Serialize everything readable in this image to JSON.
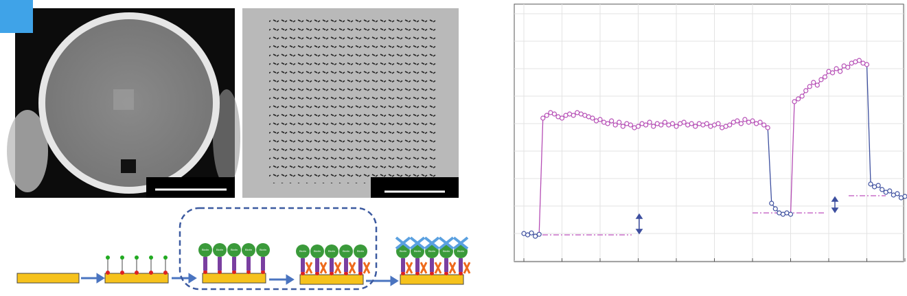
{
  "schematic": {
    "label": "Biotin"
  },
  "chart_data": {
    "type": "line",
    "x": [
      0,
      0.1,
      0.2,
      0.3,
      0.4,
      0.5,
      0.6,
      0.7,
      0.8,
      0.9,
      1,
      1.1,
      1.2,
      1.3,
      1.4,
      1.5,
      1.6,
      1.7,
      1.8,
      1.9,
      2,
      2.1,
      2.2,
      2.3,
      2.4,
      2.5,
      2.6,
      2.7,
      2.8,
      2.9,
      3,
      3.1,
      3.2,
      3.3,
      3.4,
      3.5,
      3.6,
      3.7,
      3.8,
      3.9,
      4,
      4.1,
      4.2,
      4.3,
      4.4,
      4.5,
      4.6,
      4.7,
      4.8,
      4.9,
      5,
      5.1,
      5.2,
      5.3,
      5.4,
      5.5,
      5.6,
      5.7,
      5.8,
      5.9,
      6,
      6.1,
      6.2,
      6.3,
      6.4,
      6.5,
      6.6,
      6.7,
      6.8,
      6.9,
      7,
      7.1,
      7.2,
      7.3,
      7.4,
      7.5,
      7.6,
      7.7,
      7.8,
      7.9,
      8,
      8.1,
      8.2,
      8.3,
      8.4,
      8.5,
      8.6,
      8.7,
      8.8,
      8.9,
      9,
      9.1,
      9.2,
      9.3,
      9.4,
      9.5,
      9.6,
      9.7,
      9.8,
      9.9,
      10
    ],
    "series": [
      {
        "color": "#3d4f9f",
        "values": [
          1.0,
          0.95,
          1.02,
          0.9,
          0.97,
          null,
          null,
          null,
          null,
          null,
          null,
          null,
          null,
          null,
          null,
          null,
          null,
          null,
          null,
          null,
          null,
          null,
          null,
          null,
          null,
          null,
          null,
          null,
          null,
          null,
          null,
          null,
          null,
          null,
          null,
          null,
          null,
          null,
          null,
          null,
          null,
          null,
          null,
          null,
          null,
          null,
          null,
          null,
          null,
          null,
          null,
          null,
          null,
          null,
          null,
          null,
          null,
          null,
          null,
          null,
          null,
          null,
          null,
          null,
          null,
          2.1,
          1.9,
          1.75,
          1.7,
          1.75,
          1.7,
          null,
          null,
          null,
          null,
          null,
          null,
          null,
          null,
          null,
          null,
          null,
          null,
          null,
          null,
          null,
          null,
          null,
          null,
          null,
          null,
          2.8,
          2.7,
          2.75,
          2.6,
          2.5,
          2.55,
          2.4,
          2.45,
          2.3,
          2.35
        ]
      },
      {
        "color": "#b54db5",
        "values": [
          null,
          null,
          null,
          null,
          null,
          5.2,
          5.3,
          5.4,
          5.35,
          5.25,
          5.2,
          5.3,
          5.35,
          5.3,
          5.4,
          5.35,
          5.3,
          5.25,
          5.2,
          5.1,
          5.15,
          5.05,
          5.0,
          5.1,
          4.95,
          5.05,
          4.9,
          5.0,
          4.95,
          4.85,
          4.9,
          5.0,
          4.95,
          5.05,
          4.9,
          5.0,
          4.95,
          5.05,
          4.95,
          5.0,
          4.9,
          5.0,
          5.05,
          4.95,
          5.0,
          4.9,
          5.0,
          4.95,
          5.0,
          4.9,
          4.95,
          5.0,
          4.85,
          4.9,
          4.95,
          5.05,
          5.1,
          5.0,
          5.15,
          5.05,
          5.1,
          5.0,
          5.05,
          4.95,
          4.85,
          null,
          null,
          null,
          null,
          null,
          null,
          5.8,
          5.9,
          6.0,
          6.2,
          6.35,
          6.5,
          6.4,
          6.6,
          6.7,
          6.9,
          6.85,
          7.0,
          6.9,
          7.1,
          7.05,
          7.2,
          7.25,
          7.3,
          7.2,
          7.15,
          null,
          null,
          null,
          null,
          null,
          null,
          null,
          null,
          null,
          null
        ]
      }
    ],
    "xlim": [
      0,
      10
    ],
    "ylim": [
      0,
      9
    ],
    "xticks": [
      0,
      1,
      2,
      3,
      4,
      5,
      6,
      7,
      8,
      9,
      10
    ],
    "yticks": [
      0,
      1,
      2,
      3,
      4,
      5,
      6,
      7,
      8,
      9
    ],
    "grid": true
  }
}
